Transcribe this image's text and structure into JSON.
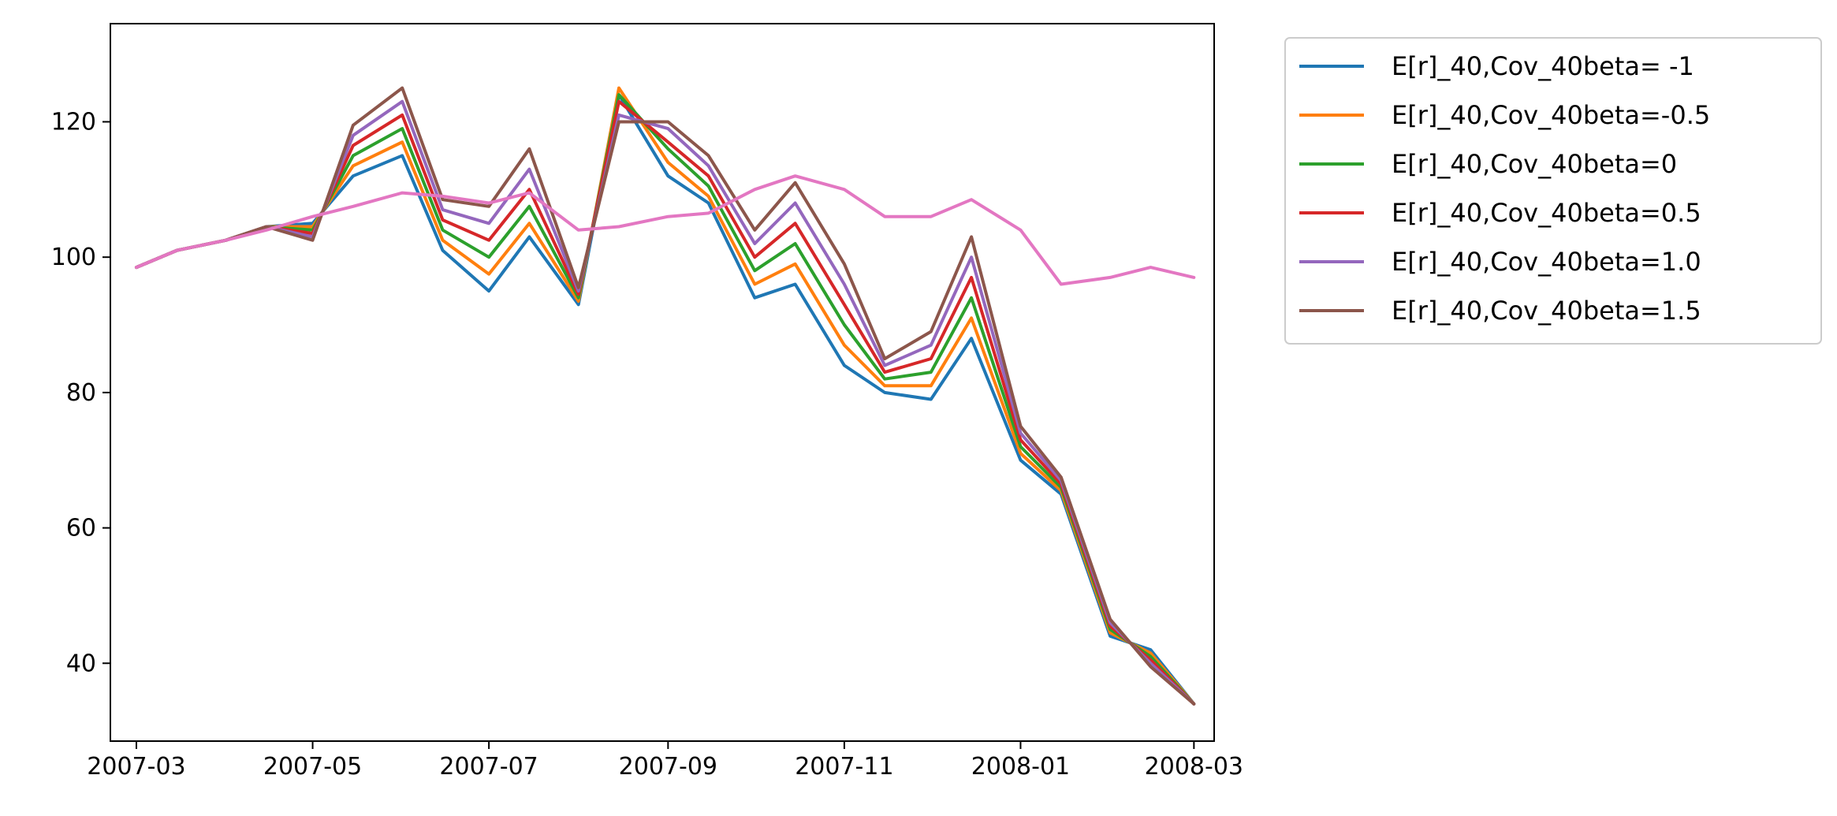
{
  "chart_data": {
    "type": "line",
    "title": "",
    "xlabel": "",
    "ylabel": "",
    "x_range": [
      "2007-02-20",
      "2008-03-08"
    ],
    "ylim": [
      28.5,
      134.5
    ],
    "x_ticks": [
      {
        "date": "2007-03-01",
        "label": "2007-03"
      },
      {
        "date": "2007-05-01",
        "label": "2007-05"
      },
      {
        "date": "2007-07-01",
        "label": "2007-07"
      },
      {
        "date": "2007-09-01",
        "label": "2007-09"
      },
      {
        "date": "2007-11-01",
        "label": "2007-11"
      },
      {
        "date": "2008-01-01",
        "label": "2008-01"
      },
      {
        "date": "2008-03-01",
        "label": "2008-03"
      }
    ],
    "y_ticks": [
      40,
      60,
      80,
      100,
      120
    ],
    "grid": false,
    "legend_position": "outside-right-top",
    "dates": [
      "2007-03-01",
      "2007-03-15",
      "2007-04-01",
      "2007-04-15",
      "2007-05-01",
      "2007-05-15",
      "2007-06-01",
      "2007-06-15",
      "2007-07-01",
      "2007-07-15",
      "2007-08-01",
      "2007-08-15",
      "2007-09-01",
      "2007-09-15",
      "2007-10-01",
      "2007-10-15",
      "2007-11-01",
      "2007-11-15",
      "2007-12-01",
      "2007-12-15",
      "2008-01-01",
      "2008-01-15",
      "2008-02-01",
      "2008-02-15",
      "2008-03-01"
    ],
    "series": [
      {
        "name": "E[r]_40,Cov_40beta= -1",
        "color": "#1f77b4",
        "values": [
          98.5,
          101,
          102.5,
          104.5,
          105,
          112,
          115,
          101,
          95,
          103,
          93,
          124,
          112,
          108,
          94,
          96,
          84,
          80,
          79,
          88,
          70,
          65,
          44,
          42,
          34
        ]
      },
      {
        "name": "E[r]_40,Cov_40beta=-0.5",
        "color": "#ff7f0e",
        "values": [
          98.5,
          101,
          102.5,
          104.5,
          104.5,
          113.5,
          117,
          102.5,
          97.5,
          105,
          93.5,
          125,
          114,
          109,
          96,
          99,
          87,
          81,
          81,
          91,
          71,
          65.5,
          44.5,
          41.5,
          34
        ]
      },
      {
        "name": "E[r]_40,Cov_40beta=0",
        "color": "#2ca02c",
        "values": [
          98.5,
          101,
          102.5,
          104.5,
          104,
          115,
          119,
          104,
          100,
          107.5,
          94,
          124,
          116,
          110.5,
          98,
          102,
          90,
          82,
          83,
          94,
          72,
          66,
          45,
          41,
          34
        ]
      },
      {
        "name": "E[r]_40,Cov_40beta=0.5",
        "color": "#d62728",
        "values": [
          98.5,
          101,
          102.5,
          104.5,
          103.5,
          116.5,
          121,
          105.5,
          102.5,
          110,
          94.5,
          123,
          117,
          112,
          100,
          105,
          93,
          83,
          85,
          97,
          73,
          66.5,
          45.5,
          40.5,
          34
        ]
      },
      {
        "name": "E[r]_40,Cov_40beta=1.0",
        "color": "#9467bd",
        "values": [
          98.5,
          101,
          102.5,
          104.5,
          103,
          118,
          123,
          107,
          105,
          113,
          95,
          121,
          119,
          113.5,
          102,
          108,
          96,
          84,
          87,
          100,
          74,
          67,
          46,
          40,
          34
        ]
      },
      {
        "name": "E[r]_40,Cov_40beta=1.5",
        "color": "#8c564b",
        "values": [
          98.5,
          101,
          102.5,
          104.5,
          102.5,
          119.5,
          125,
          108.5,
          107.5,
          116,
          95.5,
          120,
          120,
          115,
          104,
          111,
          99,
          85,
          89,
          103,
          75,
          67.5,
          46.5,
          39.5,
          34
        ]
      },
      {
        "name": "",
        "color": "#e377c2",
        "values": [
          98.5,
          101,
          102.5,
          104,
          106,
          107.5,
          109.5,
          109,
          108,
          109.5,
          104,
          104.5,
          106,
          106.5,
          110,
          112,
          110,
          106,
          106,
          108.5,
          104,
          96,
          97,
          98.5,
          97
        ]
      }
    ]
  }
}
